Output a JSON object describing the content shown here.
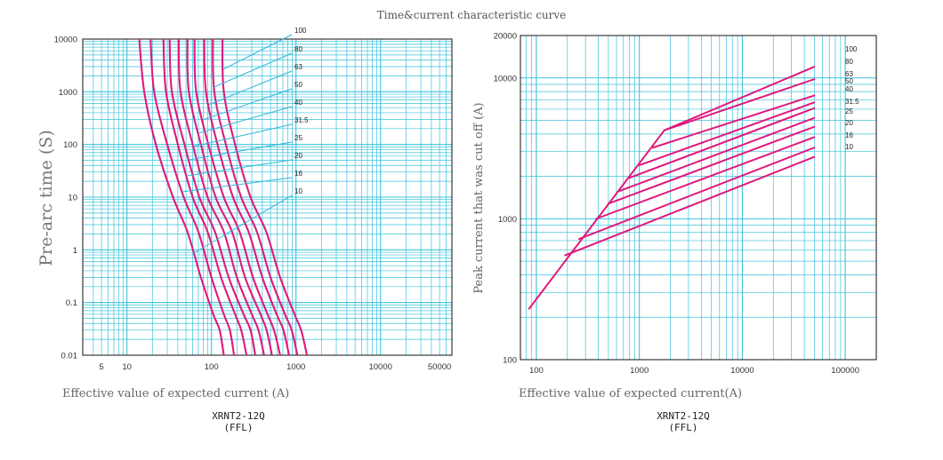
{
  "page_title": "Time&current characteristic curve",
  "colors": {
    "grid": "#3cc2dc",
    "curve": "#e0197d",
    "leader": "#2bb7d8",
    "axis": "#111111"
  },
  "chart_data": [
    {
      "type": "line",
      "title": "",
      "xlabel_text": "Effective value of expected current",
      "xlabel_unit": "A",
      "ylabel_text": "Pre-arc time",
      "ylabel_unit": "S",
      "caption_model": "XRNT2-12Q",
      "caption_sub": "(FFL)",
      "x_scale": "log",
      "y_scale": "log",
      "xlim": [
        3,
        70000
      ],
      "ylim": [
        0.01,
        10000
      ],
      "x_ticks": [
        5,
        10,
        100,
        1000,
        10000,
        50000
      ],
      "x_tick_labels": [
        "5",
        "10",
        "100",
        "1000",
        "10000",
        "50000"
      ],
      "y_ticks": [
        0.01,
        0.1,
        1,
        10,
        100,
        1000,
        10000
      ],
      "y_tick_labels": [
        "0.01",
        "0.1",
        "1",
        "10",
        "100",
        "1000",
        "10000"
      ],
      "grid": true,
      "series": [
        {
          "name": "10",
          "points": [
            [
              14,
              10000
            ],
            [
              16,
              1000
            ],
            [
              22,
              100
            ],
            [
              35,
              10
            ],
            [
              52,
              2.2
            ],
            [
              75,
              0.3
            ],
            [
              105,
              0.06
            ],
            [
              125,
              0.03
            ],
            [
              140,
              0.01
            ]
          ]
        },
        {
          "name": "16",
          "points": [
            [
              19,
              10000
            ],
            [
              21,
              1000
            ],
            [
              30,
              100
            ],
            [
              47,
              10
            ],
            [
              70,
              2.2
            ],
            [
              100,
              0.3
            ],
            [
              140,
              0.06
            ],
            [
              165,
              0.03
            ],
            [
              185,
              0.01
            ]
          ]
        },
        {
          "name": "20",
          "points": [
            [
              27,
              10000
            ],
            [
              29,
              1000
            ],
            [
              40,
              100
            ],
            [
              60,
              10
            ],
            [
              90,
              2.2
            ],
            [
              130,
              0.3
            ],
            [
              190,
              0.06
            ],
            [
              225,
              0.03
            ],
            [
              260,
              0.01
            ]
          ]
        },
        {
          "name": "25",
          "points": [
            [
              32,
              10000
            ],
            [
              34,
              1000
            ],
            [
              48,
              100
            ],
            [
              72,
              10
            ],
            [
              110,
              2.2
            ],
            [
              160,
              0.3
            ],
            [
              240,
              0.06
            ],
            [
              290,
              0.03
            ],
            [
              330,
              0.01
            ]
          ]
        },
        {
          "name": "31.5",
          "points": [
            [
              41,
              10000
            ],
            [
              43,
              1000
            ],
            [
              60,
              100
            ],
            [
              90,
              10
            ],
            [
              140,
              2.2
            ],
            [
              200,
              0.3
            ],
            [
              300,
              0.06
            ],
            [
              360,
              0.03
            ],
            [
              420,
              0.01
            ]
          ]
        },
        {
          "name": "40",
          "points": [
            [
              52,
              10000
            ],
            [
              54,
              1000
            ],
            [
              75,
              100
            ],
            [
              112,
              10
            ],
            [
              175,
              2.2
            ],
            [
              250,
              0.3
            ],
            [
              380,
              0.06
            ],
            [
              450,
              0.03
            ],
            [
              520,
              0.01
            ]
          ]
        },
        {
          "name": "50",
          "points": [
            [
              63,
              10000
            ],
            [
              66,
              1000
            ],
            [
              92,
              100
            ],
            [
              140,
              10
            ],
            [
              215,
              2.2
            ],
            [
              310,
              0.3
            ],
            [
              460,
              0.06
            ],
            [
              550,
              0.03
            ],
            [
              650,
              0.01
            ]
          ]
        },
        {
          "name": "63",
          "points": [
            [
              82,
              10000
            ],
            [
              86,
              1000
            ],
            [
              118,
              100
            ],
            [
              180,
              10
            ],
            [
              275,
              2.2
            ],
            [
              400,
              0.3
            ],
            [
              590,
              0.06
            ],
            [
              710,
              0.03
            ],
            [
              830,
              0.01
            ]
          ]
        },
        {
          "name": "80",
          "points": [
            [
              104,
              10000
            ],
            [
              108,
              1000
            ],
            [
              148,
              100
            ],
            [
              225,
              10
            ],
            [
              345,
              2.2
            ],
            [
              500,
              0.3
            ],
            [
              740,
              0.06
            ],
            [
              890,
              0.03
            ],
            [
              1040,
              0.01
            ]
          ]
        },
        {
          "name": "100",
          "points": [
            [
              135,
              10000
            ],
            [
              140,
              1000
            ],
            [
              190,
              100
            ],
            [
              290,
              10
            ],
            [
              445,
              2.2
            ],
            [
              650,
              0.3
            ],
            [
              960,
              0.06
            ],
            [
              1150,
              0.03
            ],
            [
              1350,
              0.01
            ]
          ]
        }
      ]
    },
    {
      "type": "line",
      "title": "",
      "xlabel_text": "Effective value of expected current",
      "xlabel_unit": "A",
      "ylabel_text": "Peak current that was cut off",
      "ylabel_unit": "A",
      "caption_model": "XRNT2-12Q",
      "caption_sub": "(FFL)",
      "x_scale": "log",
      "y_scale": "log",
      "xlim": [
        70,
        200000
      ],
      "ylim": [
        100,
        20000
      ],
      "x_ticks": [
        100,
        1000,
        10000,
        100000
      ],
      "x_tick_labels": [
        "100",
        "1000",
        "10000",
        "100000"
      ],
      "y_ticks": [
        100,
        1000,
        10000,
        20000
      ],
      "y_tick_labels": [
        "100",
        "1000",
        "10000",
        "20000"
      ],
      "grid": true,
      "series": [
        {
          "name": "envelope",
          "points": [
            [
              85,
              230
            ],
            [
              1750,
              4250
            ]
          ]
        },
        {
          "name": "10",
          "points": [
            [
              190,
              550
            ],
            [
              50000,
              2750
            ]
          ]
        },
        {
          "name": "16",
          "points": [
            [
              260,
              720
            ],
            [
              50000,
              3200
            ]
          ]
        },
        {
          "name": "20",
          "points": [
            [
              380,
              1000
            ],
            [
              50000,
              3800
            ]
          ]
        },
        {
          "name": "25",
          "points": [
            [
              500,
              1280
            ],
            [
              50000,
              4500
            ]
          ]
        },
        {
          "name": "31.5",
          "points": [
            [
              620,
              1560
            ],
            [
              50000,
              5200
            ]
          ]
        },
        {
          "name": "40",
          "points": [
            [
              800,
              1950
            ],
            [
              50000,
              6100
            ]
          ]
        },
        {
          "name": "50",
          "points": [
            [
              1000,
              2400
            ],
            [
              50000,
              6700
            ]
          ]
        },
        {
          "name": "63",
          "points": [
            [
              1350,
              3200
            ],
            [
              50000,
              7500
            ]
          ]
        },
        {
          "name": "80",
          "points": [
            [
              1750,
              4250
            ],
            [
              50000,
              9800
            ]
          ]
        },
        {
          "name": "100",
          "points": [
            [
              1750,
              4250
            ],
            [
              50000,
              12000
            ]
          ]
        }
      ]
    }
  ]
}
